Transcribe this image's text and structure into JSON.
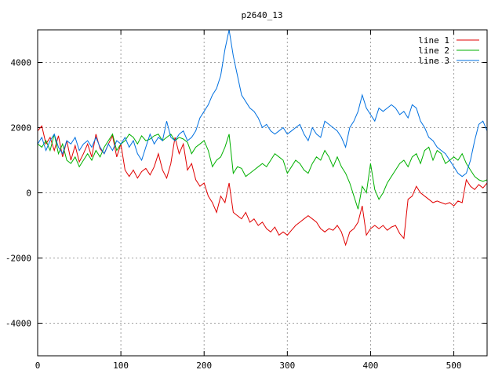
{
  "chart_data": {
    "type": "line",
    "title": "p2640_13",
    "xlabel": "",
    "ylabel": "",
    "xlim": [
      0,
      540
    ],
    "ylim": [
      -5000,
      5000
    ],
    "x_ticks": [
      0,
      100,
      200,
      300,
      400,
      500
    ],
    "y_ticks": [
      -4000,
      -2000,
      0,
      2000,
      4000
    ],
    "grid": true,
    "legend_position": "top-right",
    "series": [
      {
        "name": "line 1",
        "color": "#e00000",
        "points": [
          [
            0,
            1900
          ],
          [
            5,
            2050
          ],
          [
            10,
            1500
          ],
          [
            15,
            1700
          ],
          [
            20,
            1300
          ],
          [
            25,
            1750
          ],
          [
            30,
            1100
          ],
          [
            35,
            1600
          ],
          [
            40,
            1000
          ],
          [
            45,
            1450
          ],
          [
            50,
            950
          ],
          [
            55,
            1200
          ],
          [
            60,
            1500
          ],
          [
            65,
            1100
          ],
          [
            70,
            1800
          ],
          [
            75,
            1350
          ],
          [
            80,
            1200
          ],
          [
            85,
            1500
          ],
          [
            90,
            1750
          ],
          [
            95,
            1100
          ],
          [
            100,
            1500
          ],
          [
            105,
            700
          ],
          [
            110,
            500
          ],
          [
            115,
            700
          ],
          [
            120,
            450
          ],
          [
            125,
            650
          ],
          [
            130,
            750
          ],
          [
            135,
            550
          ],
          [
            140,
            800
          ],
          [
            145,
            1200
          ],
          [
            150,
            700
          ],
          [
            155,
            450
          ],
          [
            160,
            900
          ],
          [
            165,
            1700
          ],
          [
            170,
            1200
          ],
          [
            175,
            1500
          ],
          [
            180,
            700
          ],
          [
            185,
            900
          ],
          [
            190,
            400
          ],
          [
            195,
            200
          ],
          [
            200,
            300
          ],
          [
            205,
            -100
          ],
          [
            210,
            -300
          ],
          [
            215,
            -600
          ],
          [
            220,
            -100
          ],
          [
            225,
            -300
          ],
          [
            230,
            300
          ],
          [
            235,
            -600
          ],
          [
            240,
            -700
          ],
          [
            245,
            -800
          ],
          [
            250,
            -600
          ],
          [
            255,
            -900
          ],
          [
            260,
            -800
          ],
          [
            265,
            -1000
          ],
          [
            270,
            -900
          ],
          [
            275,
            -1100
          ],
          [
            280,
            -1200
          ],
          [
            285,
            -1050
          ],
          [
            290,
            -1300
          ],
          [
            295,
            -1200
          ],
          [
            300,
            -1300
          ],
          [
            305,
            -1150
          ],
          [
            310,
            -1000
          ],
          [
            315,
            -900
          ],
          [
            320,
            -800
          ],
          [
            325,
            -700
          ],
          [
            330,
            -800
          ],
          [
            335,
            -900
          ],
          [
            340,
            -1100
          ],
          [
            345,
            -1200
          ],
          [
            350,
            -1100
          ],
          [
            355,
            -1150
          ],
          [
            360,
            -1000
          ],
          [
            365,
            -1200
          ],
          [
            370,
            -1600
          ],
          [
            375,
            -1200
          ],
          [
            380,
            -1100
          ],
          [
            385,
            -900
          ],
          [
            390,
            -400
          ],
          [
            395,
            -1300
          ],
          [
            400,
            -1100
          ],
          [
            405,
            -1000
          ],
          [
            410,
            -1100
          ],
          [
            415,
            -1000
          ],
          [
            420,
            -1150
          ],
          [
            425,
            -1050
          ],
          [
            430,
            -1000
          ],
          [
            435,
            -1250
          ],
          [
            440,
            -1400
          ],
          [
            445,
            -200
          ],
          [
            450,
            -100
          ],
          [
            455,
            200
          ],
          [
            460,
            0
          ],
          [
            465,
            -100
          ],
          [
            470,
            -200
          ],
          [
            475,
            -300
          ],
          [
            480,
            -250
          ],
          [
            485,
            -300
          ],
          [
            490,
            -350
          ],
          [
            495,
            -300
          ],
          [
            500,
            -400
          ],
          [
            505,
            -250
          ],
          [
            510,
            -300
          ],
          [
            515,
            400
          ],
          [
            520,
            200
          ],
          [
            525,
            100
          ],
          [
            530,
            250
          ],
          [
            535,
            150
          ],
          [
            540,
            300
          ]
        ]
      },
      {
        "name": "line 2",
        "color": "#00b000",
        "points": [
          [
            0,
            1500
          ],
          [
            5,
            1400
          ],
          [
            10,
            1600
          ],
          [
            15,
            1300
          ],
          [
            20,
            1800
          ],
          [
            25,
            1200
          ],
          [
            30,
            1500
          ],
          [
            35,
            1000
          ],
          [
            40,
            900
          ],
          [
            45,
            1100
          ],
          [
            50,
            800
          ],
          [
            55,
            1000
          ],
          [
            60,
            1200
          ],
          [
            65,
            1000
          ],
          [
            70,
            1300
          ],
          [
            75,
            1100
          ],
          [
            80,
            1400
          ],
          [
            85,
            1600
          ],
          [
            90,
            1800
          ],
          [
            95,
            1300
          ],
          [
            100,
            1500
          ],
          [
            105,
            1600
          ],
          [
            110,
            1800
          ],
          [
            115,
            1700
          ],
          [
            120,
            1500
          ],
          [
            125,
            1750
          ],
          [
            130,
            1600
          ],
          [
            135,
            1650
          ],
          [
            140,
            1750
          ],
          [
            145,
            1800
          ],
          [
            150,
            1600
          ],
          [
            155,
            1700
          ],
          [
            160,
            1800
          ],
          [
            165,
            1600
          ],
          [
            170,
            1700
          ],
          [
            175,
            1650
          ],
          [
            180,
            1550
          ],
          [
            185,
            1200
          ],
          [
            190,
            1400
          ],
          [
            195,
            1500
          ],
          [
            200,
            1600
          ],
          [
            205,
            1300
          ],
          [
            210,
            800
          ],
          [
            215,
            1000
          ],
          [
            220,
            1100
          ],
          [
            225,
            1400
          ],
          [
            230,
            1800
          ],
          [
            235,
            600
          ],
          [
            240,
            800
          ],
          [
            245,
            750
          ],
          [
            250,
            500
          ],
          [
            255,
            600
          ],
          [
            260,
            700
          ],
          [
            265,
            800
          ],
          [
            270,
            900
          ],
          [
            275,
            800
          ],
          [
            280,
            1000
          ],
          [
            285,
            1200
          ],
          [
            290,
            1100
          ],
          [
            295,
            1000
          ],
          [
            300,
            600
          ],
          [
            305,
            800
          ],
          [
            310,
            1000
          ],
          [
            315,
            900
          ],
          [
            320,
            700
          ],
          [
            325,
            600
          ],
          [
            330,
            900
          ],
          [
            335,
            1100
          ],
          [
            340,
            1000
          ],
          [
            345,
            1300
          ],
          [
            350,
            1100
          ],
          [
            355,
            800
          ],
          [
            360,
            1100
          ],
          [
            365,
            800
          ],
          [
            370,
            600
          ],
          [
            375,
            300
          ],
          [
            380,
            -100
          ],
          [
            385,
            -500
          ],
          [
            390,
            200
          ],
          [
            395,
            0
          ],
          [
            400,
            900
          ],
          [
            405,
            100
          ],
          [
            410,
            -200
          ],
          [
            415,
            0
          ],
          [
            420,
            300
          ],
          [
            425,
            500
          ],
          [
            430,
            700
          ],
          [
            435,
            900
          ],
          [
            440,
            1000
          ],
          [
            445,
            800
          ],
          [
            450,
            1100
          ],
          [
            455,
            1200
          ],
          [
            460,
            900
          ],
          [
            465,
            1300
          ],
          [
            470,
            1400
          ],
          [
            475,
            1000
          ],
          [
            480,
            1300
          ],
          [
            485,
            1200
          ],
          [
            490,
            900
          ],
          [
            495,
            1000
          ],
          [
            500,
            1100
          ],
          [
            505,
            1000
          ],
          [
            510,
            1200
          ],
          [
            515,
            900
          ],
          [
            520,
            700
          ],
          [
            525,
            500
          ],
          [
            530,
            400
          ],
          [
            535,
            350
          ],
          [
            540,
            400
          ]
        ]
      },
      {
        "name": "line 3",
        "color": "#0070e0",
        "points": [
          [
            0,
            1500
          ],
          [
            5,
            1700
          ],
          [
            10,
            1300
          ],
          [
            15,
            1600
          ],
          [
            20,
            1800
          ],
          [
            25,
            1400
          ],
          [
            30,
            1200
          ],
          [
            35,
            1600
          ],
          [
            40,
            1500
          ],
          [
            45,
            1700
          ],
          [
            50,
            1300
          ],
          [
            55,
            1500
          ],
          [
            60,
            1600
          ],
          [
            65,
            1400
          ],
          [
            70,
            1700
          ],
          [
            75,
            1400
          ],
          [
            80,
            1200
          ],
          [
            85,
            1500
          ],
          [
            90,
            1300
          ],
          [
            95,
            1600
          ],
          [
            100,
            1500
          ],
          [
            105,
            1700
          ],
          [
            110,
            1400
          ],
          [
            115,
            1600
          ],
          [
            120,
            1200
          ],
          [
            125,
            1000
          ],
          [
            130,
            1400
          ],
          [
            135,
            1800
          ],
          [
            140,
            1500
          ],
          [
            145,
            1700
          ],
          [
            150,
            1600
          ],
          [
            155,
            2200
          ],
          [
            160,
            1700
          ],
          [
            165,
            1600
          ],
          [
            170,
            1800
          ],
          [
            175,
            1900
          ],
          [
            180,
            1600
          ],
          [
            185,
            1700
          ],
          [
            190,
            1900
          ],
          [
            195,
            2300
          ],
          [
            200,
            2500
          ],
          [
            205,
            2700
          ],
          [
            210,
            3000
          ],
          [
            215,
            3200
          ],
          [
            220,
            3600
          ],
          [
            225,
            4400
          ],
          [
            230,
            5000
          ],
          [
            235,
            4200
          ],
          [
            240,
            3600
          ],
          [
            245,
            3000
          ],
          [
            250,
            2800
          ],
          [
            255,
            2600
          ],
          [
            260,
            2500
          ],
          [
            265,
            2300
          ],
          [
            270,
            2000
          ],
          [
            275,
            2100
          ],
          [
            280,
            1900
          ],
          [
            285,
            1800
          ],
          [
            290,
            1900
          ],
          [
            295,
            2000
          ],
          [
            300,
            1800
          ],
          [
            305,
            1900
          ],
          [
            310,
            2000
          ],
          [
            315,
            2100
          ],
          [
            320,
            1800
          ],
          [
            325,
            1600
          ],
          [
            330,
            2000
          ],
          [
            335,
            1800
          ],
          [
            340,
            1700
          ],
          [
            345,
            2200
          ],
          [
            350,
            2100
          ],
          [
            355,
            2000
          ],
          [
            360,
            1900
          ],
          [
            365,
            1700
          ],
          [
            370,
            1400
          ],
          [
            375,
            2000
          ],
          [
            380,
            2200
          ],
          [
            385,
            2500
          ],
          [
            390,
            3000
          ],
          [
            395,
            2600
          ],
          [
            400,
            2400
          ],
          [
            405,
            2200
          ],
          [
            410,
            2600
          ],
          [
            415,
            2500
          ],
          [
            420,
            2600
          ],
          [
            425,
            2700
          ],
          [
            430,
            2600
          ],
          [
            435,
            2400
          ],
          [
            440,
            2500
          ],
          [
            445,
            2300
          ],
          [
            450,
            2700
          ],
          [
            455,
            2600
          ],
          [
            460,
            2200
          ],
          [
            465,
            2000
          ],
          [
            470,
            1700
          ],
          [
            475,
            1600
          ],
          [
            480,
            1400
          ],
          [
            485,
            1300
          ],
          [
            490,
            1200
          ],
          [
            495,
            1000
          ],
          [
            500,
            800
          ],
          [
            505,
            600
          ],
          [
            510,
            500
          ],
          [
            515,
            600
          ],
          [
            520,
            1000
          ],
          [
            525,
            1600
          ],
          [
            530,
            2100
          ],
          [
            535,
            2200
          ],
          [
            540,
            1900
          ]
        ]
      }
    ]
  }
}
